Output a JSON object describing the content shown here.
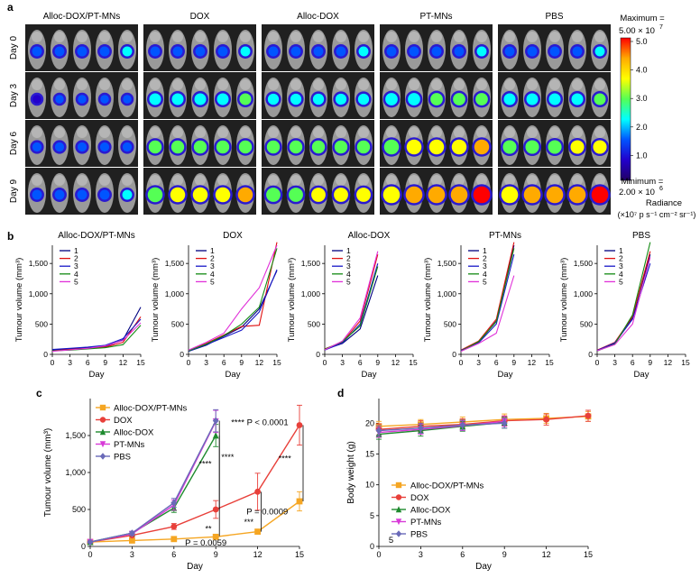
{
  "panel_letters": [
    "a",
    "b",
    "c",
    "d"
  ],
  "imaging": {
    "groups": [
      "Alloc-DOX/PT-MNs",
      "DOX",
      "Alloc-DOX",
      "PT-MNs",
      "PBS"
    ],
    "days": [
      "Day 0",
      "Day 3",
      "Day 6",
      "Day 9"
    ],
    "signal_level": [
      [
        0.35,
        0.35,
        0.35,
        0.35,
        0.35
      ],
      [
        0.25,
        0.5,
        0.45,
        0.55,
        0.5
      ],
      [
        0.3,
        0.6,
        0.6,
        0.75,
        0.65
      ],
      [
        0.35,
        0.75,
        0.7,
        0.9,
        0.9
      ]
    ],
    "colorbar": {
      "max_label": "Maximum =",
      "max_value": "5.00 × 10",
      "max_exp": "7",
      "ticks": [
        "5.0",
        "4.0",
        "3.0",
        "2.0",
        "1.0"
      ],
      "min_label": "Minimum =",
      "min_value": "2.00 × 10",
      "min_exp": "6",
      "unit_title": "Radiance",
      "unit_text": "(×10⁷ p s⁻¹ cm⁻² sr⁻¹)",
      "colors": [
        "#ff0000",
        "#ffaa00",
        "#ffff00",
        "#55ff55",
        "#00ffff",
        "#0055ff",
        "#2200cc",
        "#220066"
      ]
    }
  },
  "chart_data": [
    {
      "type": "line",
      "panel": "b",
      "title": "Alloc-DOX/PT-MNs",
      "xlabel": "Day",
      "ylabel": "Tumour volume (mm³)",
      "xlim": [
        0,
        15
      ],
      "ylim": [
        0,
        1800
      ],
      "xticks": [
        "0",
        "3",
        "6",
        "9",
        "12",
        "15"
      ],
      "yticks": [
        "0",
        "500",
        "1,000",
        "1,500"
      ],
      "legend": [
        "1",
        "2",
        "3",
        "4",
        "5"
      ],
      "x": [
        0,
        3,
        6,
        9,
        12,
        15
      ],
      "series": [
        {
          "name": "1",
          "color": "#000080",
          "values": [
            70,
            90,
            110,
            130,
            240,
            780
          ]
        },
        {
          "name": "2",
          "color": "#e01010",
          "values": [
            60,
            80,
            100,
            120,
            200,
            620
          ]
        },
        {
          "name": "3",
          "color": "#1818c8",
          "values": [
            80,
            100,
            120,
            150,
            260,
            580
          ]
        },
        {
          "name": "4",
          "color": "#138a13",
          "values": [
            60,
            70,
            90,
            110,
            160,
            480
          ]
        },
        {
          "name": "5",
          "color": "#e030d8",
          "values": [
            50,
            75,
            100,
            140,
            230,
            520
          ]
        }
      ]
    },
    {
      "type": "line",
      "panel": "b",
      "title": "DOX",
      "xlabel": "Day",
      "ylabel": "Tumour volume (mm³)",
      "xlim": [
        0,
        15
      ],
      "ylim": [
        0,
        1800
      ],
      "xticks": [
        "0",
        "3",
        "6",
        "9",
        "12",
        "15"
      ],
      "yticks": [
        "0",
        "500",
        "1,000",
        "1,500"
      ],
      "legend": [
        "1",
        "2",
        "3",
        "4",
        "5"
      ],
      "x": [
        0,
        3,
        6,
        9,
        12,
        15
      ],
      "series": [
        {
          "name": "1",
          "color": "#000080",
          "values": [
            50,
            150,
            300,
            450,
            750,
            1380
          ]
        },
        {
          "name": "2",
          "color": "#e01010",
          "values": [
            60,
            180,
            320,
            460,
            480,
            1850
          ]
        },
        {
          "name": "3",
          "color": "#1818c8",
          "values": [
            55,
            160,
            280,
            400,
            700,
            1400
          ]
        },
        {
          "name": "4",
          "color": "#138a13",
          "values": [
            60,
            170,
            310,
            500,
            780,
            1750
          ]
        },
        {
          "name": "5",
          "color": "#e030d8",
          "values": [
            70,
            200,
            350,
            750,
            1100,
            1800
          ]
        }
      ]
    },
    {
      "type": "line",
      "panel": "b",
      "title": "Alloc-DOX",
      "xlabel": "Day",
      "ylabel": "Tumour volume (mm³)",
      "xlim": [
        0,
        15
      ],
      "ylim": [
        0,
        1800
      ],
      "xticks": [
        "0",
        "3",
        "6",
        "9",
        "12",
        "15"
      ],
      "yticks": [
        "0",
        "500",
        "1,000",
        "1,500"
      ],
      "legend": [
        "1",
        "2",
        "3",
        "4",
        "5"
      ],
      "x": [
        0,
        3,
        6,
        9
      ],
      "series": [
        {
          "name": "1",
          "color": "#000080",
          "values": [
            80,
            180,
            420,
            1300
          ]
        },
        {
          "name": "2",
          "color": "#e01010",
          "values": [
            90,
            200,
            550,
            1650
          ]
        },
        {
          "name": "3",
          "color": "#1818c8",
          "values": [
            70,
            190,
            500,
            1500
          ]
        },
        {
          "name": "4",
          "color": "#138a13",
          "values": [
            85,
            210,
            470,
            1450
          ]
        },
        {
          "name": "5",
          "color": "#e030d8",
          "values": [
            75,
            220,
            600,
            1700
          ]
        }
      ]
    },
    {
      "type": "line",
      "panel": "b",
      "title": "PT-MNs",
      "xlabel": "Day",
      "ylabel": "Tumour volume (mm³)",
      "xlim": [
        0,
        15
      ],
      "ylim": [
        0,
        1800
      ],
      "xticks": [
        "0",
        "3",
        "6",
        "9",
        "12",
        "15"
      ],
      "yticks": [
        "0",
        "500",
        "1,000",
        "1,500"
      ],
      "legend": [
        "1",
        "2",
        "3",
        "4",
        "5"
      ],
      "x": [
        0,
        3,
        6,
        9
      ],
      "series": [
        {
          "name": "1",
          "color": "#000080",
          "values": [
            60,
            200,
            550,
            1800
          ]
        },
        {
          "name": "2",
          "color": "#e01010",
          "values": [
            70,
            220,
            580,
            1850
          ]
        },
        {
          "name": "3",
          "color": "#1818c8",
          "values": [
            65,
            190,
            500,
            1650
          ]
        },
        {
          "name": "4",
          "color": "#138a13",
          "values": [
            55,
            210,
            540,
            1750
          ]
        },
        {
          "name": "5",
          "color": "#e030d8",
          "values": [
            50,
            180,
            350,
            1300
          ]
        }
      ]
    },
    {
      "type": "line",
      "panel": "b",
      "title": "PBS",
      "xlabel": "Day",
      "ylabel": "Tumour volume (mm³)",
      "xlim": [
        0,
        15
      ],
      "ylim": [
        0,
        1800
      ],
      "xticks": [
        "0",
        "3",
        "6",
        "9",
        "12",
        "15"
      ],
      "yticks": [
        "0",
        "500",
        "1,000",
        "1,500"
      ],
      "legend": [
        "1",
        "2",
        "3",
        "4",
        "5"
      ],
      "x": [
        0,
        3,
        6,
        9
      ],
      "series": [
        {
          "name": "1",
          "color": "#000080",
          "values": [
            60,
            180,
            600,
            1650
          ]
        },
        {
          "name": "2",
          "color": "#e01010",
          "values": [
            70,
            200,
            620,
            1700
          ]
        },
        {
          "name": "3",
          "color": "#1818c8",
          "values": [
            65,
            190,
            580,
            1500
          ]
        },
        {
          "name": "4",
          "color": "#138a13",
          "values": [
            55,
            170,
            650,
            1850
          ]
        },
        {
          "name": "5",
          "color": "#e030d8",
          "values": [
            60,
            160,
            500,
            1600
          ]
        }
      ]
    },
    {
      "type": "line",
      "panel": "c",
      "title": "",
      "xlabel": "Day",
      "ylabel": "Tumour volume (mm³)",
      "xlim": [
        0,
        15
      ],
      "ylim": [
        0,
        2000
      ],
      "xticks": [
        "0",
        "3",
        "6",
        "9",
        "12",
        "15"
      ],
      "yticks": [
        "0",
        "500",
        "1,000",
        "1,500"
      ],
      "series": [
        {
          "name": "Alloc-DOX/PT-MNs",
          "color": "#f5a623",
          "marker": "square",
          "x": [
            0,
            3,
            6,
            9,
            12,
            15
          ],
          "values": [
            60,
            80,
            100,
            130,
            200,
            610
          ],
          "err": [
            10,
            10,
            15,
            20,
            30,
            130
          ]
        },
        {
          "name": "DOX",
          "color": "#e8403a",
          "marker": "circle",
          "x": [
            0,
            3,
            6,
            9,
            12,
            15
          ],
          "values": [
            60,
            150,
            270,
            500,
            740,
            1640
          ],
          "err": [
            10,
            20,
            40,
            120,
            250,
            270
          ]
        },
        {
          "name": "Alloc-DOX",
          "color": "#1e8a2e",
          "marker": "triangle",
          "x": [
            0,
            3,
            6,
            9
          ],
          "values": [
            60,
            180,
            520,
            1500
          ],
          "err": [
            10,
            20,
            60,
            150
          ]
        },
        {
          "name": "PT-MNs",
          "color": "#d83ad8",
          "marker": "triangle-down",
          "x": [
            0,
            3,
            6,
            9
          ],
          "values": [
            60,
            170,
            560,
            1690
          ],
          "err": [
            10,
            20,
            70,
            150
          ]
        },
        {
          "name": "PBS",
          "color": "#6a6ab8",
          "marker": "diamond",
          "x": [
            0,
            3,
            6,
            9
          ],
          "values": [
            60,
            180,
            590,
            1700
          ],
          "err": [
            10,
            20,
            60,
            150
          ]
        }
      ],
      "annotations": [
        "**** P < 0.0001",
        "P = 0.0009",
        "P = 0.0059",
        "****",
        "****",
        "****",
        "**",
        "***"
      ]
    },
    {
      "type": "line",
      "panel": "d",
      "title": "",
      "xlabel": "Day",
      "ylabel": "Body weight (g)",
      "xlim": [
        0,
        15
      ],
      "ylim": [
        0,
        24
      ],
      "xticks": [
        "0",
        "3",
        "6",
        "9",
        "12",
        "15"
      ],
      "yticks": [
        "0",
        "5",
        "10",
        "15",
        "20"
      ],
      "series": [
        {
          "name": "Alloc-DOX/PT-MNs",
          "color": "#f5a623",
          "marker": "square",
          "x": [
            0,
            3,
            6,
            9,
            12,
            15
          ],
          "values": [
            19.5,
            19.8,
            20.2,
            20.6,
            20.8,
            21.1
          ],
          "err": [
            0.8,
            0.8,
            0.8,
            0.9,
            0.8,
            0.8
          ]
        },
        {
          "name": "DOX",
          "color": "#e8403a",
          "marker": "circle",
          "x": [
            0,
            3,
            6,
            9,
            12,
            15
          ],
          "values": [
            19.0,
            19.5,
            19.8,
            20.4,
            20.6,
            21.2
          ],
          "err": [
            0.9,
            0.9,
            0.9,
            0.8,
            0.9,
            0.9
          ]
        },
        {
          "name": "Alloc-DOX",
          "color": "#1e8a2e",
          "marker": "triangle",
          "x": [
            0,
            3,
            6,
            9
          ],
          "values": [
            18.2,
            18.8,
            19.5,
            20.1
          ],
          "err": [
            0.8,
            0.9,
            0.8,
            0.9
          ]
        },
        {
          "name": "PT-MNs",
          "color": "#d83ad8",
          "marker": "triangle-down",
          "x": [
            0,
            3,
            6,
            9
          ],
          "values": [
            18.5,
            19.0,
            19.6,
            20.3
          ],
          "err": [
            0.8,
            0.8,
            0.8,
            0.8
          ]
        },
        {
          "name": "PBS",
          "color": "#6a6ab8",
          "marker": "diamond",
          "x": [
            0,
            3,
            6,
            9
          ],
          "values": [
            18.8,
            19.2,
            19.7,
            20.0
          ],
          "err": [
            0.8,
            0.8,
            0.8,
            0.8
          ]
        }
      ],
      "annotations": [
        "5"
      ]
    }
  ]
}
